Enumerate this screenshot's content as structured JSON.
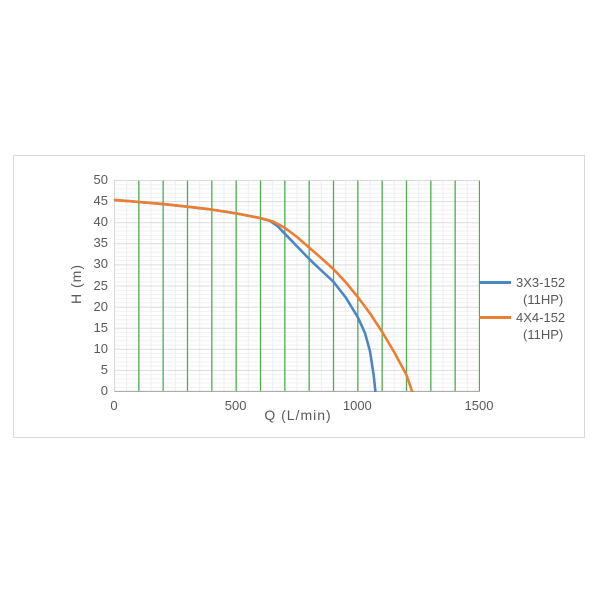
{
  "chart_data": {
    "type": "line",
    "title": "",
    "xlabel": "Q (L/min)",
    "ylabel": "H (m)",
    "xlim": [
      0,
      1500
    ],
    "ylim": [
      0,
      50
    ],
    "x_ticks": [
      0,
      500,
      1000,
      1500
    ],
    "y_ticks": [
      0,
      5,
      10,
      15,
      20,
      25,
      30,
      35,
      40,
      45,
      50
    ],
    "grid": {
      "x_major_step": 100,
      "x_minor_step": 50,
      "y_major_step": 5,
      "y_minor_step": 1,
      "x_major_color": "#4cae50",
      "x_minor_color": "#ebf1f4",
      "y_major_color": "#dbdbdb",
      "y_minor_color": "#f1f1f1",
      "axis_color": "#ababab",
      "left_axis_color": "#d9d9d9"
    },
    "legend_position": "right",
    "series": [
      {
        "name": "3X3-152 (11HP)",
        "color": "#4e86c4",
        "points": [
          [
            0,
            45.4
          ],
          [
            100,
            44.9
          ],
          [
            200,
            44.4
          ],
          [
            300,
            43.8
          ],
          [
            400,
            43.1
          ],
          [
            500,
            42.2
          ],
          [
            600,
            41.1
          ],
          [
            640,
            40.4
          ],
          [
            670,
            39.2
          ],
          [
            700,
            37.4
          ],
          [
            750,
            34.4
          ],
          [
            800,
            31.4
          ],
          [
            850,
            28.7
          ],
          [
            900,
            26.0
          ],
          [
            950,
            22.3
          ],
          [
            1000,
            17.6
          ],
          [
            1030,
            13.8
          ],
          [
            1050,
            9.5
          ],
          [
            1065,
            4.0
          ],
          [
            1072,
            0
          ]
        ]
      },
      {
        "name": "4X4-152 (11HP)",
        "color": "#ed7d31",
        "points": [
          [
            0,
            45.4
          ],
          [
            100,
            44.9
          ],
          [
            200,
            44.4
          ],
          [
            300,
            43.8
          ],
          [
            400,
            43.1
          ],
          [
            500,
            42.2
          ],
          [
            600,
            41.1
          ],
          [
            650,
            40.3
          ],
          [
            700,
            38.8
          ],
          [
            750,
            36.6
          ],
          [
            800,
            34.1
          ],
          [
            850,
            31.6
          ],
          [
            900,
            29.0
          ],
          [
            950,
            25.9
          ],
          [
            1000,
            22.4
          ],
          [
            1050,
            18.5
          ],
          [
            1100,
            14.1
          ],
          [
            1150,
            9.3
          ],
          [
            1200,
            3.9
          ],
          [
            1223,
            0
          ]
        ]
      }
    ]
  },
  "legend": {
    "items": [
      {
        "line1": "3X3-152",
        "line2": "(11HP)",
        "color": "#4e86c4"
      },
      {
        "line1": "4X4-152",
        "line2": "(11HP)",
        "color": "#ed7d31"
      }
    ]
  }
}
